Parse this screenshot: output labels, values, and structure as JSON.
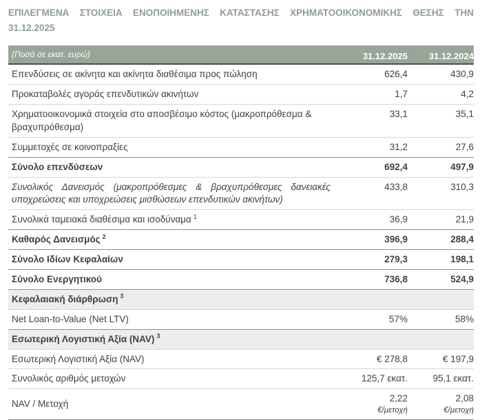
{
  "title": "ΕΠΙΛΕΓΜΕΝΑ ΣΤΟΙΧΕΙΑ ΕΝΟΠΟΙΗΜΕΝΗΣ ΚΑΤΑΣΤΑΣΗΣ ΧΡΗΜΑΤΟΟΙΚΟΝΟΜΙΚΗΣ ΘΕΣΗΣ ΤΗΝ 31.12.2025",
  "table": {
    "unit_note": "(Ποσά σε εκατ. ευρώ)",
    "columns": [
      "31.12.2025",
      "31.12.2024"
    ],
    "rows": [
      {
        "label": "Επενδύσεις σε ακίνητα και ακίνητα διαθέσιμα προς πώληση",
        "sup": "",
        "v1": "626,4",
        "v2": "430,9",
        "unit1": "",
        "unit2": "",
        "style": "normal"
      },
      {
        "label": "Προκαταβολές αγοράς επενδυτικών ακινήτων",
        "sup": "",
        "v1": "1,7",
        "v2": "4,2",
        "unit1": "",
        "unit2": "",
        "style": "normal"
      },
      {
        "label": "Χρηματοοικονομικά στοιχεία στο αποσβέσιμο κόστος (μακροπρόθεσμα & βραχυπρόθεσμα)",
        "sup": "",
        "v1": "33,1",
        "v2": "35,1",
        "unit1": "",
        "unit2": "",
        "style": "normal"
      },
      {
        "label": "Συμμετοχές σε κοινοπραξίες",
        "sup": "",
        "v1": "31,2",
        "v2": "27,6",
        "unit1": "",
        "unit2": "",
        "style": "normal"
      },
      {
        "label": "Σύνολο επενδύσεων",
        "sup": "",
        "v1": "692,4",
        "v2": "497,9",
        "unit1": "",
        "unit2": "",
        "style": "total"
      },
      {
        "label": "Συνολικός Δανεισμός (μακροπρόθεσμες & βραχυπρόθεσμες δανειακές υποχρεώσεις και υποχρεώσεις μισθώσεων επενδυτικών ακινήτων)",
        "sup": "",
        "v1": "433,8",
        "v2": "310,3",
        "unit1": "",
        "unit2": "",
        "style": "italic"
      },
      {
        "label": "Συνολικά ταμειακά διαθέσιμα και ισοδύναμα",
        "sup": "1",
        "v1": "36,9",
        "v2": "21,9",
        "unit1": "",
        "unit2": "",
        "style": "normal"
      },
      {
        "label": "Καθαρός Δανεισμός",
        "sup": "2",
        "v1": "396,9",
        "v2": "288,4",
        "unit1": "",
        "unit2": "",
        "style": "total"
      },
      {
        "label": "Σύνολο Ιδίων Κεφαλαίων",
        "sup": "",
        "v1": "279,3",
        "v2": "198,1",
        "unit1": "",
        "unit2": "",
        "style": "total"
      },
      {
        "label": "Σύνολο Ενεργητικού",
        "sup": "",
        "v1": "736,8",
        "v2": "524,9",
        "unit1": "",
        "unit2": "",
        "style": "total"
      },
      {
        "label": "Κεφαλαιακή διάρθρωση",
        "sup": "3",
        "v1": "",
        "v2": "",
        "unit1": "",
        "unit2": "",
        "style": "section"
      },
      {
        "label": "Net Loan-to-Value (Net LTV)",
        "sup": "",
        "v1": "57%",
        "v2": "58%",
        "unit1": "",
        "unit2": "",
        "style": "normal"
      },
      {
        "label": "Εσωτερική Λογιστική Αξία (NAV)",
        "sup": "3",
        "v1": "",
        "v2": "",
        "unit1": "",
        "unit2": "",
        "style": "section"
      },
      {
        "label": "Εσωτερική Λογιστική Αξία (NAV)",
        "sup": "",
        "v1": "€ 278,8",
        "v2": "€ 197,9",
        "unit1": "",
        "unit2": "",
        "style": "normal"
      },
      {
        "label": "Συνολικός αριθμός μετοχών",
        "sup": "",
        "v1": "125,7 εκατ.",
        "v2": "95,1 εκατ.",
        "unit1": "",
        "unit2": "",
        "style": "normal"
      },
      {
        "label": "NAV / Μετοχή",
        "sup": "",
        "v1": "2,22",
        "v2": "2,08",
        "unit1": "€/μετοχή",
        "unit2": "€/μετοχή",
        "style": "normal"
      }
    ]
  },
  "colors": {
    "title_text": "#8E9D91",
    "header_bg": "#97A698",
    "header_text": "#FFFFFF",
    "section_row_bg": "#EDEDED",
    "body_text": "#404040",
    "border_dark": "#4D4D4D",
    "border_strong": "#8F8F8F",
    "border_light": "#D6D6D6"
  }
}
